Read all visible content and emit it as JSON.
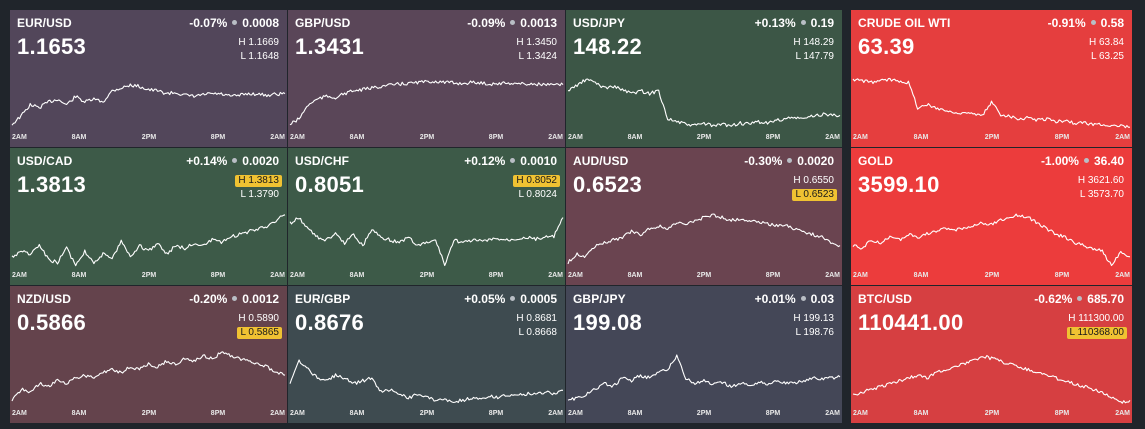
{
  "colors": {
    "background": "#20252b",
    "highlight_badge": "#f0c232",
    "line": "#ffffff"
  },
  "time_axis": [
    "2AM",
    "8AM",
    "2PM",
    "8PM",
    "2AM"
  ],
  "tiles": [
    {
      "symbol": "EUR/USD",
      "change_pct": "-0.07%",
      "change_abs": "0.0008",
      "price": "1.1653",
      "high": "H 1.1669",
      "low": "L 1.1648",
      "high_badge": false,
      "low_badge": false,
      "bg": "#52465a",
      "series": [
        0.9,
        0.75,
        0.55,
        0.6,
        0.5,
        0.45,
        0.55,
        0.4,
        0.5,
        0.45,
        0.5,
        0.3,
        0.25,
        0.2,
        0.22,
        0.28,
        0.3,
        0.35,
        0.33,
        0.38,
        0.4,
        0.37,
        0.35,
        0.36,
        0.4,
        0.38,
        0.35,
        0.36,
        0.38,
        0.36,
        0.35
      ]
    },
    {
      "symbol": "GBP/USD",
      "change_pct": "-0.09%",
      "change_abs": "0.0013",
      "price": "1.3431",
      "high": "H 1.3450",
      "low": "L 1.3424",
      "high_badge": false,
      "low_badge": false,
      "bg": "#5a4658",
      "series": [
        0.9,
        0.8,
        0.55,
        0.45,
        0.4,
        0.42,
        0.35,
        0.3,
        0.28,
        0.25,
        0.22,
        0.2,
        0.18,
        0.17,
        0.15,
        0.14,
        0.13,
        0.15,
        0.16,
        0.17,
        0.15,
        0.16,
        0.18,
        0.17,
        0.16,
        0.17,
        0.18,
        0.18,
        0.19,
        0.2,
        0.19
      ]
    },
    {
      "symbol": "USD/JPY",
      "change_pct": "+0.13%",
      "change_abs": "0.19",
      "price": "148.22",
      "high": "H 148.29",
      "low": "L 147.79",
      "high_badge": false,
      "low_badge": false,
      "bg": "#3c5646",
      "series": [
        0.3,
        0.2,
        0.1,
        0.15,
        0.25,
        0.22,
        0.28,
        0.35,
        0.3,
        0.35,
        0.3,
        0.8,
        0.85,
        0.9,
        0.92,
        0.88,
        0.93,
        0.9,
        0.92,
        0.88,
        0.9,
        0.85,
        0.88,
        0.83,
        0.8,
        0.78,
        0.8,
        0.75,
        0.72,
        0.73,
        0.74
      ]
    },
    {
      "symbol": "CRUDE OIL WTI",
      "change_pct": "-0.91%",
      "change_abs": "0.58",
      "price": "63.39",
      "high": "H 63.84",
      "low": "L 63.25",
      "high_badge": false,
      "low_badge": false,
      "bg": "#e53e3e",
      "series": [
        0.1,
        0.12,
        0.15,
        0.12,
        0.1,
        0.12,
        0.15,
        0.6,
        0.55,
        0.6,
        0.65,
        0.7,
        0.68,
        0.72,
        0.75,
        0.5,
        0.72,
        0.75,
        0.8,
        0.78,
        0.82,
        0.8,
        0.85,
        0.83,
        0.88,
        0.87,
        0.9,
        0.9,
        0.92,
        0.93,
        0.95
      ]
    },
    {
      "symbol": "USD/CAD",
      "change_pct": "+0.14%",
      "change_abs": "0.0020",
      "price": "1.3813",
      "high": "H 1.3813",
      "low": "L 1.3790",
      "high_badge": true,
      "low_badge": false,
      "bg": "#3d5a48",
      "series": [
        0.8,
        0.7,
        0.75,
        0.6,
        0.85,
        0.9,
        0.65,
        0.95,
        0.7,
        0.9,
        0.75,
        0.85,
        0.5,
        0.8,
        0.6,
        0.7,
        0.55,
        0.75,
        0.6,
        0.65,
        0.55,
        0.6,
        0.5,
        0.55,
        0.45,
        0.4,
        0.35,
        0.3,
        0.25,
        0.15,
        0.05
      ]
    },
    {
      "symbol": "USD/CHF",
      "change_pct": "+0.12%",
      "change_abs": "0.0010",
      "price": "0.8051",
      "high": "H 0.8052",
      "low": "L 0.8024",
      "high_badge": true,
      "low_badge": false,
      "bg": "#3d5a48",
      "series": [
        0.2,
        0.1,
        0.3,
        0.45,
        0.5,
        0.4,
        0.55,
        0.4,
        0.6,
        0.3,
        0.45,
        0.5,
        0.55,
        0.45,
        0.6,
        0.55,
        0.5,
        0.95,
        0.5,
        0.55,
        0.5,
        0.52,
        0.5,
        0.48,
        0.5,
        0.47,
        0.45,
        0.48,
        0.45,
        0.44,
        0.1
      ]
    },
    {
      "symbol": "AUD/USD",
      "change_pct": "-0.30%",
      "change_abs": "0.0020",
      "price": "0.6523",
      "high": "H 0.6550",
      "low": "L 0.6523",
      "high_badge": false,
      "low_badge": true,
      "bg": "#6a4450",
      "series": [
        0.9,
        0.75,
        0.8,
        0.6,
        0.55,
        0.5,
        0.45,
        0.35,
        0.4,
        0.3,
        0.25,
        0.3,
        0.2,
        0.22,
        0.15,
        0.1,
        0.05,
        0.1,
        0.15,
        0.12,
        0.15,
        0.18,
        0.2,
        0.25,
        0.22,
        0.3,
        0.35,
        0.4,
        0.45,
        0.55,
        0.6
      ]
    },
    {
      "symbol": "GOLD",
      "change_pct": "-1.00%",
      "change_abs": "36.40",
      "price": "3599.10",
      "high": "H 3621.60",
      "low": "L 3573.70",
      "high_badge": false,
      "low_badge": false,
      "bg": "#ec3c3c",
      "series": [
        0.6,
        0.65,
        0.5,
        0.55,
        0.45,
        0.5,
        0.4,
        0.45,
        0.38,
        0.35,
        0.3,
        0.32,
        0.28,
        0.25,
        0.2,
        0.22,
        0.15,
        0.1,
        0.05,
        0.1,
        0.2,
        0.3,
        0.4,
        0.45,
        0.55,
        0.6,
        0.65,
        0.7,
        0.95,
        0.7,
        0.8
      ]
    },
    {
      "symbol": "NZD/USD",
      "change_pct": "-0.20%",
      "change_abs": "0.0012",
      "price": "0.5866",
      "high": "H 0.5890",
      "low": "L 0.5865",
      "high_badge": false,
      "low_badge": true,
      "bg": "#64434c",
      "series": [
        0.9,
        0.7,
        0.75,
        0.6,
        0.65,
        0.55,
        0.6,
        0.5,
        0.45,
        0.5,
        0.4,
        0.35,
        0.4,
        0.3,
        0.35,
        0.25,
        0.3,
        0.2,
        0.25,
        0.15,
        0.2,
        0.1,
        0.15,
        0.05,
        0.1,
        0.15,
        0.2,
        0.25,
        0.3,
        0.4,
        0.45
      ]
    },
    {
      "symbol": "EUR/GBP",
      "change_pct": "+0.05%",
      "change_abs": "0.0005",
      "price": "0.8676",
      "high": "H 0.8681",
      "low": "L 0.8668",
      "high_badge": false,
      "low_badge": false,
      "bg": "#3e4b50",
      "series": [
        0.6,
        0.2,
        0.35,
        0.5,
        0.55,
        0.45,
        0.5,
        0.6,
        0.55,
        0.5,
        0.75,
        0.7,
        0.8,
        0.85,
        0.8,
        0.85,
        0.9,
        0.88,
        0.92,
        0.9,
        0.85,
        0.88,
        0.82,
        0.85,
        0.8,
        0.82,
        0.78,
        0.8,
        0.75,
        0.78,
        0.72
      ]
    },
    {
      "symbol": "GBP/JPY",
      "change_pct": "+0.01%",
      "change_abs": "0.03",
      "price": "199.08",
      "high": "H 199.13",
      "low": "L 198.76",
      "high_badge": false,
      "low_badge": false,
      "bg": "#444757",
      "series": [
        0.9,
        0.85,
        0.8,
        0.7,
        0.6,
        0.65,
        0.5,
        0.55,
        0.45,
        0.5,
        0.4,
        0.35,
        0.1,
        0.5,
        0.6,
        0.55,
        0.62,
        0.58,
        0.65,
        0.6,
        0.62,
        0.58,
        0.6,
        0.55,
        0.58,
        0.6,
        0.55,
        0.5,
        0.52,
        0.5,
        0.48
      ]
    },
    {
      "symbol": "BTC/USD",
      "change_pct": "-0.62%",
      "change_abs": "685.70",
      "price": "110441.00",
      "high": "H 111300.00",
      "low": "L 110368.00",
      "high_badge": false,
      "low_badge": true,
      "bg": "#d63f41",
      "series": [
        0.8,
        0.75,
        0.7,
        0.65,
        0.6,
        0.55,
        0.5,
        0.45,
        0.5,
        0.4,
        0.35,
        0.3,
        0.25,
        0.2,
        0.1,
        0.15,
        0.2,
        0.25,
        0.3,
        0.35,
        0.4,
        0.45,
        0.5,
        0.55,
        0.6,
        0.65,
        0.7,
        0.75,
        0.85,
        0.95,
        0.9
      ]
    }
  ]
}
